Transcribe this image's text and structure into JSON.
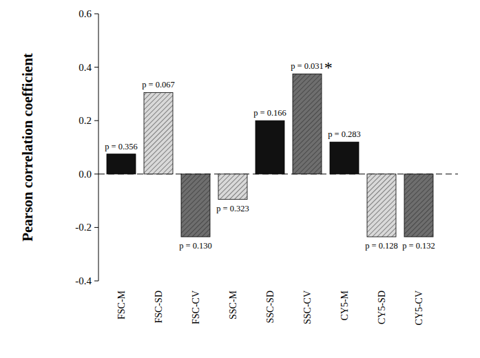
{
  "chart_data": {
    "type": "bar",
    "y_label": "Pearson correlation coefficient",
    "categories": [
      "FSC-M",
      "FSC-SD",
      "FSC-CV",
      "SSC-M",
      "SSC-SD",
      "SSC-CV",
      "CY5-M",
      "CY5-SD",
      "CY5-CV"
    ],
    "values": [
      0.075,
      0.305,
      -0.235,
      -0.095,
      0.2,
      0.375,
      0.12,
      -0.235,
      -0.235
    ],
    "colors": [
      "#111111",
      "#d9d9d9",
      "#6e6e6e",
      "#d9d9d9",
      "#111111",
      "#6e6e6e",
      "#111111",
      "#d9d9d9",
      "#6e6e6e"
    ],
    "annotations": [
      {
        "text": "p = 0.356"
      },
      {
        "text": "p = 0.067"
      },
      {
        "text": "p = 0.130"
      },
      {
        "text": "p = 0.323"
      },
      {
        "text": "p = 0.166"
      },
      {
        "text": "p = 0.031",
        "symbol": "*"
      },
      {
        "text": "p = 0.283"
      },
      {
        "text": "p = 0.128"
      },
      {
        "text": "p = 0.132"
      }
    ],
    "ylim": [
      -0.4,
      0.6
    ],
    "yticks": [
      -0.4,
      -0.2,
      {
        "value": 0,
        "label": "0.0"
      },
      0.2,
      0.4,
      0.6
    ],
    "grid": false
  }
}
